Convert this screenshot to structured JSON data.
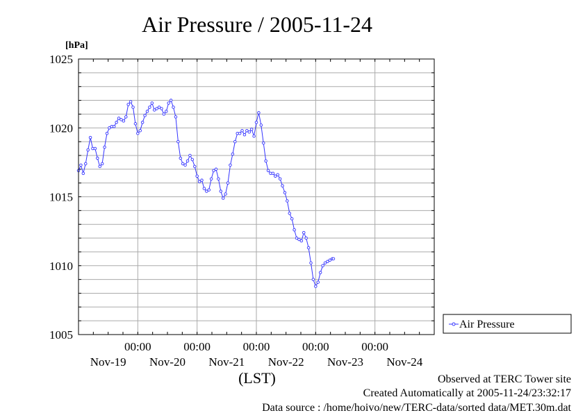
{
  "chart_data": {
    "type": "line",
    "title": "Air Pressure / 2005-11-24",
    "ylabel": "[hPa]",
    "xlabel": "(LST)",
    "ylim": [
      1005,
      1025
    ],
    "yticks": [
      1005,
      1010,
      1015,
      1020,
      1025
    ],
    "xlim": [
      -1.0,
      5.0
    ],
    "xticks": [
      {
        "x": 0,
        "time": "00:00",
        "date": "Nov-20"
      },
      {
        "x": 1,
        "time": "00:00",
        "date": "Nov-21"
      },
      {
        "x": 2,
        "time": "00:00",
        "date": "Nov-22"
      },
      {
        "x": 3,
        "time": "00:00",
        "date": "Nov-23"
      },
      {
        "x": 4,
        "time": "00:00",
        "date": "Nov-24"
      }
    ],
    "first_date_label": "Nov-19",
    "grid": true,
    "legend": "right",
    "series": [
      {
        "name": "Air Pressure",
        "color": "#3333ff",
        "points": [
          [
            -1.0,
            1016.9
          ],
          [
            -0.96,
            1017.3
          ],
          [
            -0.92,
            1016.7
          ],
          [
            -0.88,
            1017.4
          ],
          [
            -0.84,
            1018.4
          ],
          [
            -0.8,
            1019.3
          ],
          [
            -0.76,
            1018.5
          ],
          [
            -0.72,
            1018.5
          ],
          [
            -0.68,
            1017.8
          ],
          [
            -0.64,
            1017.2
          ],
          [
            -0.6,
            1017.4
          ],
          [
            -0.56,
            1018.6
          ],
          [
            -0.52,
            1019.6
          ],
          [
            -0.48,
            1020.0
          ],
          [
            -0.44,
            1020.1
          ],
          [
            -0.4,
            1020.1
          ],
          [
            -0.36,
            1020.4
          ],
          [
            -0.32,
            1020.7
          ],
          [
            -0.28,
            1020.6
          ],
          [
            -0.24,
            1020.5
          ],
          [
            -0.2,
            1020.8
          ],
          [
            -0.16,
            1021.7
          ],
          [
            -0.12,
            1021.9
          ],
          [
            -0.08,
            1021.5
          ],
          [
            -0.04,
            1020.3
          ],
          [
            0.0,
            1019.6
          ],
          [
            0.04,
            1019.8
          ],
          [
            0.08,
            1020.4
          ],
          [
            0.12,
            1020.9
          ],
          [
            0.16,
            1021.2
          ],
          [
            0.2,
            1021.5
          ],
          [
            0.24,
            1021.8
          ],
          [
            0.28,
            1021.3
          ],
          [
            0.32,
            1021.4
          ],
          [
            0.36,
            1021.5
          ],
          [
            0.4,
            1021.4
          ],
          [
            0.44,
            1021.0
          ],
          [
            0.48,
            1021.2
          ],
          [
            0.52,
            1021.8
          ],
          [
            0.56,
            1022.0
          ],
          [
            0.6,
            1021.5
          ],
          [
            0.64,
            1020.8
          ],
          [
            0.68,
            1019.0
          ],
          [
            0.72,
            1017.8
          ],
          [
            0.76,
            1017.4
          ],
          [
            0.8,
            1017.3
          ],
          [
            0.84,
            1017.6
          ],
          [
            0.88,
            1018.0
          ],
          [
            0.92,
            1017.7
          ],
          [
            0.96,
            1017.2
          ],
          [
            1.0,
            1016.5
          ],
          [
            1.04,
            1016.1
          ],
          [
            1.08,
            1016.2
          ],
          [
            1.12,
            1015.6
          ],
          [
            1.16,
            1015.4
          ],
          [
            1.2,
            1015.5
          ],
          [
            1.24,
            1016.3
          ],
          [
            1.28,
            1016.9
          ],
          [
            1.32,
            1017.0
          ],
          [
            1.36,
            1016.3
          ],
          [
            1.4,
            1015.4
          ],
          [
            1.44,
            1014.9
          ],
          [
            1.48,
            1015.2
          ],
          [
            1.52,
            1016.0
          ],
          [
            1.56,
            1017.3
          ],
          [
            1.6,
            1018.1
          ],
          [
            1.64,
            1019.0
          ],
          [
            1.68,
            1019.6
          ],
          [
            1.72,
            1019.6
          ],
          [
            1.76,
            1019.8
          ],
          [
            1.8,
            1019.5
          ],
          [
            1.84,
            1019.8
          ],
          [
            1.88,
            1019.7
          ],
          [
            1.92,
            1019.9
          ],
          [
            1.96,
            1019.4
          ],
          [
            2.0,
            1020.4
          ],
          [
            2.04,
            1021.1
          ],
          [
            2.08,
            1020.2
          ],
          [
            2.12,
            1018.9
          ],
          [
            2.16,
            1017.6
          ],
          [
            2.2,
            1016.9
          ],
          [
            2.24,
            1016.7
          ],
          [
            2.28,
            1016.7
          ],
          [
            2.32,
            1016.5
          ],
          [
            2.36,
            1016.6
          ],
          [
            2.4,
            1016.3
          ],
          [
            2.44,
            1015.8
          ],
          [
            2.48,
            1015.3
          ],
          [
            2.52,
            1014.7
          ],
          [
            2.56,
            1013.8
          ],
          [
            2.6,
            1013.4
          ],
          [
            2.64,
            1012.6
          ],
          [
            2.68,
            1012.0
          ],
          [
            2.72,
            1011.9
          ],
          [
            2.76,
            1011.8
          ],
          [
            2.8,
            1012.4
          ],
          [
            2.84,
            1012.0
          ],
          [
            2.88,
            1011.3
          ],
          [
            2.92,
            1010.2
          ],
          [
            2.96,
            1009.0
          ],
          [
            3.0,
            1008.5
          ],
          [
            3.04,
            1008.8
          ],
          [
            3.08,
            1009.5
          ],
          [
            3.12,
            1010.0
          ],
          [
            3.16,
            1010.2
          ],
          [
            3.2,
            1010.3
          ],
          [
            3.24,
            1010.4
          ],
          [
            3.28,
            1010.5
          ],
          [
            3.3,
            1010.5
          ]
        ]
      }
    ]
  },
  "footer": {
    "line1": "Observed at TERC Tower site",
    "line2": "Created Automatically at 2005-11-24/23:32:17",
    "line3": "Data source : /home/hoivo/new/TERC-data/sorted  data/MET.30m.dat"
  }
}
